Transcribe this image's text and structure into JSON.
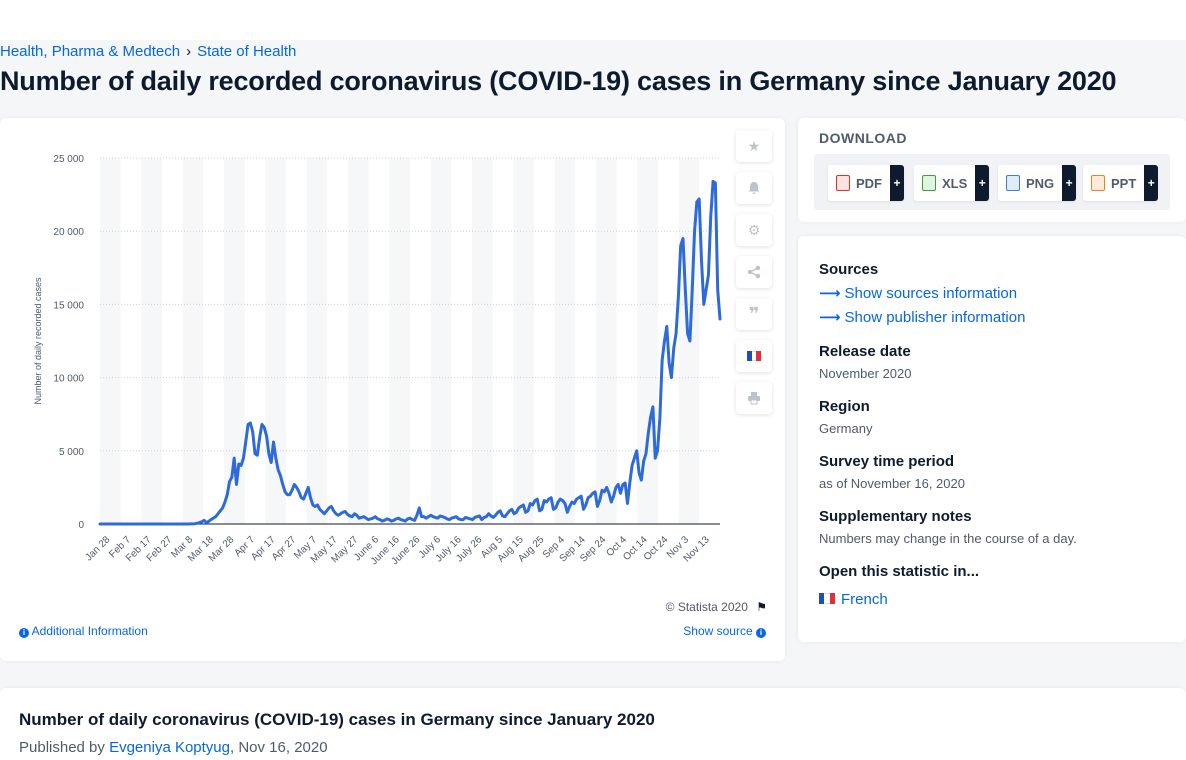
{
  "breadcrumb": {
    "items": [
      "Health, Pharma & Medtech",
      "State of Health"
    ],
    "separator": "›"
  },
  "page_title": "Number of daily recorded coronavirus (COVID-19) cases in Germany since January 2020",
  "chart_panel": {
    "credit": "© Statista 2020",
    "additional_info": "Additional Information",
    "show_source": "Show source",
    "side_icons": [
      "star-icon",
      "bell-icon",
      "gear-icon",
      "share-icon",
      "quote-icon",
      "flag-fr-icon",
      "print-icon"
    ]
  },
  "chart_data": {
    "type": "line",
    "title": "",
    "xlabel": "",
    "ylabel": "Number of daily recorded cases",
    "ylim": [
      0,
      25000
    ],
    "yticks": [
      0,
      5000,
      10000,
      15000,
      20000,
      25000
    ],
    "ytick_labels": [
      "0",
      "5 000",
      "10 000",
      "15 000",
      "20 000",
      "25 000"
    ],
    "xtick_labels": [
      "Jan 28",
      "Feb 7",
      "Feb 17",
      "Feb 27",
      "Mar 8",
      "Mar 18",
      "Mar 28",
      "Apr 7",
      "Apr 17",
      "Apr 27",
      "May 7",
      "May 17",
      "May 27",
      "June 6",
      "June 16",
      "June 26",
      "July 6",
      "July 16",
      "July 26",
      "Aug 5",
      "Aug 15",
      "Aug 25",
      "Sep 4",
      "Sep 14",
      "Sep 24",
      "Oct 4",
      "Oct 14",
      "Oct 24",
      "Nov 3",
      "Nov 13"
    ],
    "grid": true,
    "legend": "none",
    "line_color": "#2f6bd8",
    "series": [
      {
        "values": [
          1,
          0,
          0,
          0,
          0,
          0,
          0,
          0,
          0,
          0,
          0,
          0,
          0,
          0,
          0,
          0,
          0,
          0,
          0,
          0,
          0,
          0,
          0,
          0,
          0,
          0,
          0,
          0,
          0,
          0,
          0,
          0,
          0,
          0,
          0,
          0,
          0,
          0,
          0,
          5,
          10,
          20,
          50,
          100,
          150,
          250,
          100,
          180,
          300,
          400,
          500,
          700,
          900,
          1100,
          1500,
          2000,
          2900,
          3200,
          4500,
          2700,
          4100,
          4000,
          4500,
          5600,
          6800,
          6900,
          6300,
          4800,
          4700,
          5900,
          6800,
          6600,
          6000,
          4800,
          4200,
          5600,
          4500,
          3700,
          3300,
          2700,
          2200,
          2000,
          2000,
          2300,
          2700,
          2500,
          2200,
          1800,
          1700,
          2100,
          2500,
          1800,
          1300,
          1200,
          1300,
          1000,
          850,
          700,
          900,
          1100,
          1200,
          900,
          700,
          600,
          700,
          800,
          850,
          650,
          550,
          500,
          700,
          600,
          400,
          450,
          500,
          400,
          300,
          350,
          400,
          500,
          350,
          300,
          200,
          250,
          350,
          300,
          200,
          250,
          350,
          400,
          300,
          250,
          200,
          350,
          400,
          300,
          250,
          600,
          1100,
          500,
          500,
          400,
          500,
          600,
          500,
          450,
          400,
          550,
          500,
          450,
          350,
          300,
          400,
          450,
          500,
          350,
          300,
          300,
          450,
          400,
          350,
          300,
          450,
          500,
          550,
          300,
          450,
          500,
          700,
          550,
          450,
          600,
          800,
          900,
          550,
          500,
          700,
          900,
          1000,
          700,
          800,
          1100,
          1200,
          1300,
          800,
          900,
          1400,
          1300,
          1600,
          1700,
          900,
          1000,
          1600,
          1500,
          1700,
          1800,
          1000,
          1100,
          1500,
          1700,
          1600,
          1400,
          800,
          1200,
          1500,
          1400,
          1700,
          1800,
          1900,
          1000,
          1300,
          1800,
          1900,
          2100,
          2200,
          1200,
          1600,
          2300,
          2200,
          2500,
          2100,
          1500,
          1900,
          2500,
          2700,
          2100,
          2700,
          2800,
          1400,
          2800,
          4000,
          4500,
          5000,
          3500,
          3000,
          4300,
          4800,
          6200,
          7300,
          8000,
          4500,
          5000,
          7200,
          11200,
          12500,
          13500,
          11000,
          10000,
          12000,
          13000,
          15500,
          19000,
          19500,
          16000,
          13000,
          12500,
          16000,
          20000,
          22000,
          22200,
          18000,
          15000,
          16000,
          17000,
          21000,
          23400,
          23300,
          16000,
          14000
        ]
      }
    ]
  },
  "download": {
    "title": "DOWNLOAD",
    "buttons": [
      {
        "label": "PDF",
        "icon": "pdf-file-icon",
        "plus": "+",
        "color": "#d9342b"
      },
      {
        "label": "XLS",
        "icon": "xls-file-icon",
        "plus": "+",
        "color": "#3d9d3c"
      },
      {
        "label": "PNG",
        "icon": "png-file-icon",
        "plus": "+",
        "color": "#3f7fc4"
      },
      {
        "label": "PPT",
        "icon": "ppt-file-icon",
        "plus": "+",
        "color": "#e8842c"
      }
    ]
  },
  "meta": {
    "sources_heading": "Sources",
    "show_sources": "Show sources information",
    "show_publisher": "Show publisher information",
    "release_heading": "Release date",
    "release_value": "November 2020",
    "region_heading": "Region",
    "region_value": "Germany",
    "survey_heading": "Survey time period",
    "survey_value": "as of November 16, 2020",
    "notes_heading": "Supplementary notes",
    "notes_value": "Numbers may change in the course of a day.",
    "open_heading": "Open this statistic in...",
    "open_link": "French"
  },
  "bottom": {
    "title": "Number of daily coronavirus (COVID-19) cases in Germany since January 2020",
    "published_by": "Published by",
    "author": "Evgeniya Koptyug",
    "date": ", Nov 16, 2020"
  },
  "colors": {
    "accent": "#0666e5",
    "line": "#2f6bd8",
    "text": "#0e1b2e"
  }
}
